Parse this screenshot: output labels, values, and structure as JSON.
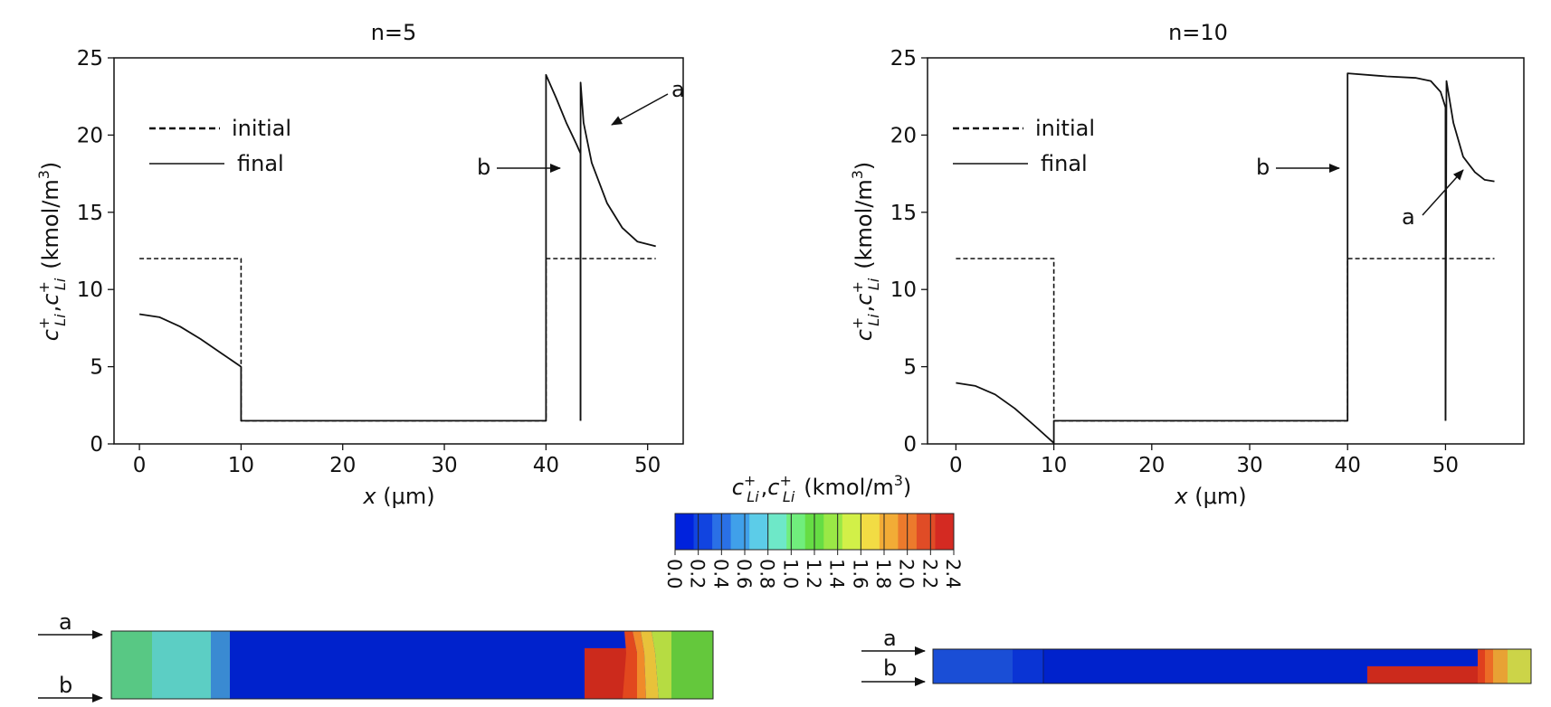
{
  "chart_data": [
    {
      "id": "left",
      "type": "line",
      "title": "n=5",
      "xlabel": "x (μm)",
      "ylabel": "c_Li^+, c_Li^+ (kmol/m^3)",
      "xlim": [
        -2.5,
        53.5
      ],
      "ylim": [
        0,
        25
      ],
      "xticks": [
        0,
        10,
        20,
        30,
        40,
        50
      ],
      "yticks": [
        0,
        5,
        10,
        15,
        20,
        25
      ],
      "legend": {
        "position": "top-left",
        "entries": [
          "initial",
          "final"
        ]
      },
      "series": [
        {
          "name": "initial",
          "style": "dashed",
          "x": [
            0,
            10,
            10,
            40,
            40,
            50.8
          ],
          "y": [
            12,
            12,
            1.5,
            1.5,
            12,
            12
          ]
        },
        {
          "name": "final",
          "style": "solid",
          "x": [
            0,
            2,
            4,
            6,
            8,
            10,
            10,
            40,
            40,
            41,
            42,
            43,
            43.4,
            43.4
          ],
          "y": [
            8.4,
            8.2,
            7.6,
            6.8,
            5.9,
            5,
            1.5,
            1.5,
            23.9,
            22.4,
            20.8,
            19.4,
            18.8,
            1.5
          ]
        },
        {
          "name": "final",
          "style": "solid",
          "x": [
            43.4,
            43.4,
            43.7,
            44.5,
            46,
            47.5,
            49,
            50.8
          ],
          "y": [
            1.5,
            23.4,
            20.8,
            18.2,
            15.6,
            14.0,
            13.1,
            12.8
          ]
        }
      ],
      "annotations": [
        {
          "text": "a",
          "points_to": [
            43.7,
            20.5
          ]
        },
        {
          "text": "b",
          "points_to": [
            39.7,
            17.8
          ]
        }
      ]
    },
    {
      "id": "right",
      "type": "line",
      "title": "n=10",
      "xlabel": "x (μm)",
      "ylabel": "c_Li^+, c_Li^+ (kmol/m^3)",
      "xlim": [
        -2.9,
        58
      ],
      "ylim": [
        0,
        25
      ],
      "xticks": [
        0,
        10,
        20,
        30,
        40,
        50
      ],
      "yticks": [
        0,
        5,
        10,
        15,
        20,
        25
      ],
      "legend": {
        "position": "top-left",
        "entries": [
          "initial",
          "final"
        ]
      },
      "series": [
        {
          "name": "initial",
          "style": "dashed",
          "x": [
            0,
            10,
            10,
            40,
            40,
            55
          ],
          "y": [
            12,
            12,
            1.5,
            1.5,
            12,
            12
          ]
        },
        {
          "name": "final",
          "style": "solid",
          "x": [
            0,
            2,
            4,
            6,
            8,
            10,
            10,
            40,
            40,
            44,
            47,
            48.5,
            49.5,
            50,
            50,
            50
          ],
          "y": [
            3.95,
            3.75,
            3.2,
            2.3,
            1.2,
            0.05,
            1.5,
            1.5,
            24.0,
            23.8,
            23.7,
            23.5,
            22.8,
            21.8,
            1.5,
            1.5
          ]
        },
        {
          "name": "final",
          "style": "solid",
          "x": [
            50,
            50.1,
            50.8,
            51.8,
            53,
            54,
            55
          ],
          "y": [
            1.5,
            23.5,
            20.8,
            18.6,
            17.6,
            17.1,
            17.0
          ]
        }
      ],
      "annotations": [
        {
          "text": "a",
          "points_to": [
            52.2,
            17.9
          ]
        },
        {
          "text": "b",
          "points_to": [
            39.6,
            17.8
          ]
        }
      ]
    }
  ],
  "colorbar": {
    "label": "c_Li^+, c_Li^+ (kmol/m^3)",
    "ticks": [
      "0.0",
      "0.2",
      "0.4",
      "0.6",
      "0.8",
      "1.0",
      "1.2",
      "1.4",
      "1.6",
      "1.8",
      "2.0",
      "2.2",
      "2.4"
    ],
    "colors": [
      "#0022dd",
      "#1144e0",
      "#2a70e6",
      "#40a0ea",
      "#5ccce8",
      "#6ee8c8",
      "#70ee7c",
      "#66dd44",
      "#9ae846",
      "#d2f048",
      "#f2dc44",
      "#f2ac36",
      "#ec7a2c",
      "#e04c26",
      "#d42a22"
    ]
  },
  "panels": {
    "left": {
      "label_a": "a",
      "label_b": "b"
    },
    "right": {
      "label_a": "a",
      "label_b": "b"
    }
  },
  "texts": {
    "left_title": "n=5",
    "right_title": "n=10",
    "legend_initial": "initial",
    "legend_final": "final",
    "xlabel_x": "x",
    "xlabel_unit": "(μm)",
    "ylabel_c": "c",
    "ylabel_sub": "Li",
    "ylabel_sup": "+",
    "ylabel_sep": ",",
    "unit_a": "(kmol/m",
    "unit_b": "3",
    "unit_c": ")",
    "annot_a": "a",
    "annot_b": "b"
  }
}
